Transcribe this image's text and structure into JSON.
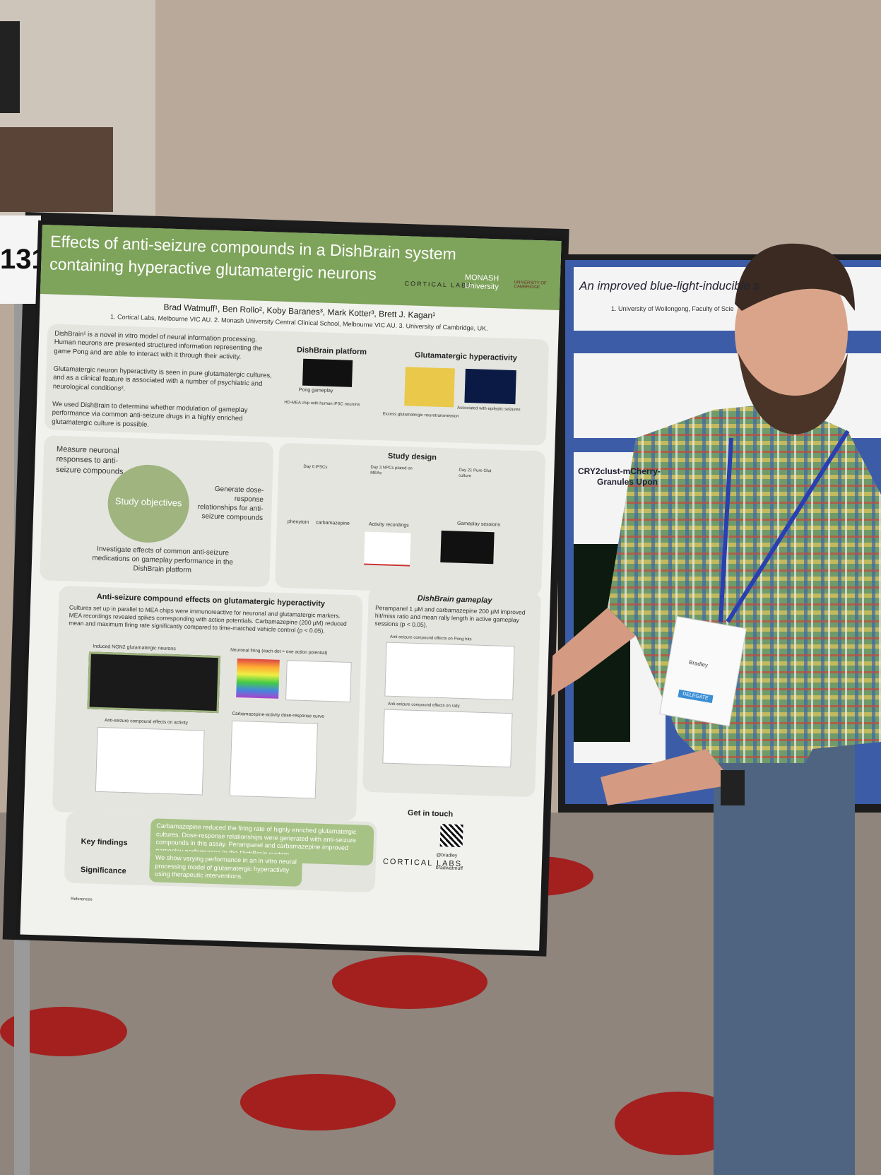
{
  "poster_number": "131",
  "poster": {
    "title_line1": "Effects of anti-seizure compounds in a DishBrain system",
    "title_line2": "containing hyperactive glutamatergic neurons",
    "logos": [
      "CORTICAL LABS",
      "MONASH University",
      "UNIVERSITY OF CAMBRIDGE"
    ],
    "authors": "Brad Watmuff¹, Ben Rollo², Koby Baranes³, Mark Kotter³, Brett J. Kagan¹",
    "affiliations": "1. Cortical Labs, Melbourne VIC AU. 2. Monash University Central Clinical School, Melbourne VIC AU. 3. University of Cambridge, UK.",
    "intro": [
      "DishBrain¹ is a novel in vitro model of neural information processing. Human neurons are presented structured information representing the game Pong and are able to interact with it through their activity.",
      "Glutamatergic neuron hyperactivity is seen in pure glutamatergic cultures, and as a clinical feature is associated with a number of psychiatric and neurological conditions².",
      "We used DishBrain to determine whether modulation of gameplay performance via common anti-seizure drugs in a highly enriched glutamatergic culture is possible."
    ],
    "platform_heading": "DishBrain platform",
    "platform_caption": "HD-MEA chip with human iPSC neurons",
    "pong_label": "Pong gameplay",
    "hyper_heading": "Glutamatergic hyperactivity",
    "hyper_caption": "Excess glutamatergic neurotransmission",
    "epileptic_caption": "Associated with epileptic seizures",
    "objectives": {
      "center": "Study objectives",
      "a": "Measure neuronal responses to anti-seizure compounds",
      "b": "Generate dose-response relationships for anti-seizure compounds",
      "c": "Investigate effects of common anti-seizure medications on gameplay performance in the DishBrain platform"
    },
    "design": {
      "heading": "Study design",
      "steps": [
        "Day 0 iPSCs",
        "Day 3 NPCs plated on MEAs",
        "Day 21 Pure Glut culture"
      ],
      "drugs": [
        "phenytoin",
        "carbamazepine"
      ],
      "recordings": "Activity recordings",
      "sessions": "Gameplay sessions"
    },
    "effects": {
      "heading": "Anti-seizure compound effects on glutamatergic hyperactivity",
      "text": "Cultures set up in parallel to MEA chips were immunoreactive for neuronal and glutamatergic markers. MEA recordings revealed spikes corresponding with action potentials. Carbamazepine (200 µM) reduced mean and maximum firing rate significantly compared to time-matched vehicle control (p < 0.05).",
      "fig1": "Induced NGN2 glutamatergic neurons",
      "fig2": "Neuronal firing (each dot = one action potential)",
      "fig3": "Anti-seizure compound effects on activity",
      "fig4": "Carbamazepine-activity dose-response curve"
    },
    "gameplay": {
      "heading": "DishBrain gameplay",
      "text": "Perampanel 1 µM and carbamazepine 200 µM improved hit/miss ratio and mean rally length in active gameplay sessions (p < 0.05).",
      "fig1": "Anti-seizure compound effects on Pong hits",
      "fig2": "Anti-seizure compound effects on rally"
    },
    "key_findings_label": "Key findings",
    "key_findings": "Carbamazepine reduced the firing rate of highly enriched glutamatergic cultures. Dose-response relationships were generated with anti-seizure compounds in this assay. Perampanel and carbamazepine improved gameplay performance in the DishBrain system.",
    "significance_label": "Significance",
    "significance": "We show varying performance in an in vitro neural processing model of glutamatergic hyperactivity using therapeutic interventions.",
    "contact_heading": "Get in touch",
    "contact": [
      "@bradley",
      "bradwatmuff"
    ],
    "references_label": "References"
  },
  "neighbor_poster": {
    "title": "An improved blue-light-inducible s",
    "affiliation": "1. University of Wollongong, Faculty of Scie",
    "section": "CRY2clust-mCherry-",
    "section2": "Granules Upon"
  },
  "badge": {
    "name": "Bradley",
    "role": "DELEGATE"
  }
}
